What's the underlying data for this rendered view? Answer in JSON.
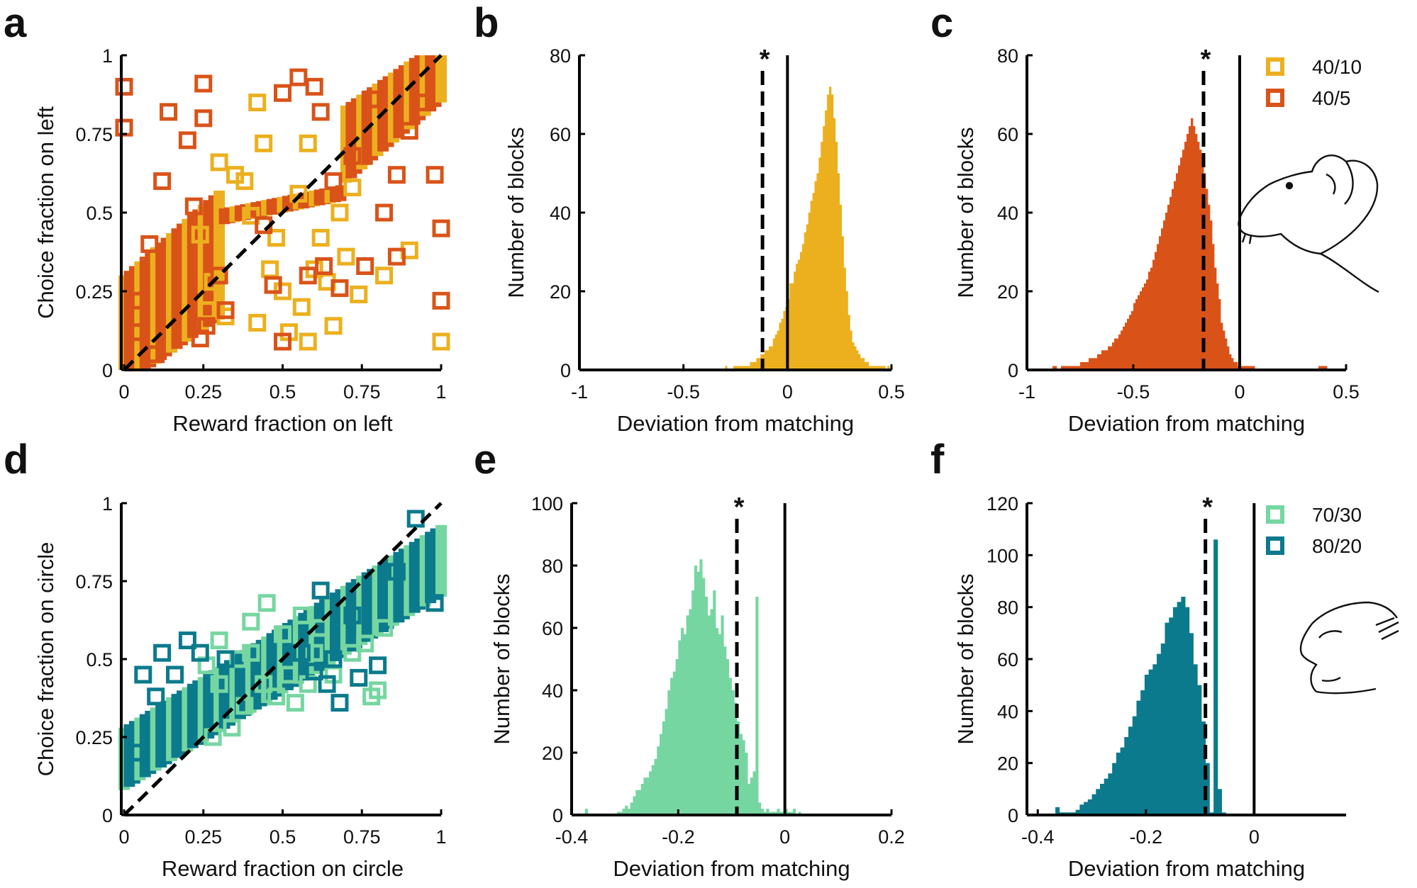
{
  "colors": {
    "yellow": "#ecb01f",
    "orange": "#d95319",
    "mint": "#76d6a1",
    "teal": "#0b7a8c",
    "axis": "#000000"
  },
  "chart_data": [
    {
      "panel": "a",
      "type": "scatter",
      "xlabel": "Reward fraction on left",
      "ylabel": "Choice fraction on left",
      "xlim": [
        0,
        1
      ],
      "ylim": [
        0,
        1
      ],
      "xticks": [
        "0",
        "0.25",
        "0.5",
        "0.75",
        "1"
      ],
      "yticks": [
        "0",
        "0.25",
        "0.5",
        "0.75",
        "1"
      ],
      "diagonal": true,
      "series": [
        {
          "name": "40/10",
          "color": "#ecb01f",
          "points": [
            [
              0.32,
              0.17
            ],
            [
              0.42,
              0.15
            ],
            [
              0.5,
              0.25
            ],
            [
              0.56,
              0.2
            ],
            [
              0.46,
              0.32
            ],
            [
              0.6,
              0.32
            ],
            [
              0.38,
              0.6
            ],
            [
              0.44,
              0.72
            ],
            [
              0.55,
              0.56
            ],
            [
              0.62,
              0.42
            ],
            [
              0.64,
              0.28
            ],
            [
              0.7,
              0.36
            ],
            [
              0.74,
              0.24
            ],
            [
              0.68,
              0.5
            ],
            [
              0.42,
              0.85
            ],
            [
              0.35,
              0.62
            ],
            [
              0.3,
              0.66
            ],
            [
              0.48,
              0.42
            ],
            [
              0.52,
              0.12
            ],
            [
              0.58,
              0.09
            ],
            [
              0.28,
              0.28
            ],
            [
              0.24,
              0.43
            ],
            [
              0.58,
              0.72
            ],
            [
              0.72,
              0.58
            ],
            [
              0.82,
              0.3
            ],
            [
              0.9,
              0.38
            ],
            [
              1.0,
              0.09
            ],
            [
              0.4,
              0.49
            ],
            [
              0.26,
              0.19
            ],
            [
              0.66,
              0.14
            ]
          ]
        },
        {
          "name": "40/5",
          "color": "#d95319",
          "points": [
            [
              0.0,
              0.9
            ],
            [
              0.0,
              0.77
            ],
            [
              0.14,
              0.82
            ],
            [
              0.25,
              0.91
            ],
            [
              0.2,
              0.73
            ],
            [
              0.25,
              0.8
            ],
            [
              0.22,
              0.52
            ],
            [
              0.12,
              0.6
            ],
            [
              0.08,
              0.4
            ],
            [
              0.05,
              0.22
            ],
            [
              0.04,
              0.12
            ],
            [
              0.26,
              0.14
            ],
            [
              0.32,
              0.19
            ],
            [
              0.47,
              0.27
            ],
            [
              0.5,
              0.09
            ],
            [
              0.58,
              0.3
            ],
            [
              0.63,
              0.33
            ],
            [
              0.68,
              0.26
            ],
            [
              0.76,
              0.33
            ],
            [
              0.82,
              0.5
            ],
            [
              0.86,
              0.36
            ],
            [
              0.9,
              0.76
            ],
            [
              0.95,
              0.85
            ],
            [
              0.98,
              0.62
            ],
            [
              1.0,
              0.22
            ],
            [
              1.0,
              0.45
            ],
            [
              0.72,
              0.68
            ],
            [
              0.62,
              0.82
            ],
            [
              0.5,
              0.88
            ],
            [
              0.66,
              0.6
            ],
            [
              0.78,
              0.86
            ],
            [
              0.44,
              0.46
            ],
            [
              0.1,
              0.05
            ],
            [
              0.3,
              0.3
            ],
            [
              0.24,
              0.1
            ],
            [
              0.86,
              0.62
            ],
            [
              0.6,
              0.9
            ],
            [
              0.55,
              0.93
            ]
          ]
        }
      ]
    },
    {
      "panel": "b",
      "type": "bar",
      "xlabel": "Deviation from matching",
      "ylabel": "Number of blocks",
      "xlim": [
        -1,
        0.5
      ],
      "ylim": [
        0,
        80
      ],
      "xticks": [
        "-1",
        "-0.5",
        "0",
        "0.5"
      ],
      "yticks": [
        "0",
        "20",
        "40",
        "60",
        "80"
      ],
      "color": "#ecb01f",
      "bin_start": -1.0,
      "bin_width": 0.01,
      "values": [
        0,
        0,
        0,
        0,
        0,
        0,
        0,
        0,
        0,
        0,
        0,
        0,
        0,
        0,
        0,
        0,
        0,
        0,
        0,
        0,
        0,
        0,
        0,
        0,
        0,
        0,
        0,
        0,
        0,
        0,
        0,
        0,
        0,
        0,
        0,
        0,
        0,
        0,
        0,
        0,
        0,
        0,
        0,
        0,
        0,
        0,
        0,
        0,
        0,
        0,
        0,
        0,
        0,
        0,
        0,
        0,
        0,
        0,
        0,
        0,
        0,
        0,
        0,
        0,
        0,
        0,
        0,
        0,
        0,
        0,
        1,
        0,
        0,
        0,
        1,
        1,
        1,
        1,
        1,
        1,
        1,
        1,
        2,
        2,
        2,
        3,
        3,
        4,
        4,
        5,
        5,
        6,
        6,
        8,
        9,
        10,
        12,
        13,
        15,
        16,
        18,
        22,
        22,
        25,
        27,
        28,
        30,
        32,
        35,
        37,
        40,
        43,
        45,
        48,
        50,
        54,
        58,
        62,
        66,
        70,
        72,
        70,
        64,
        58,
        50,
        42,
        34,
        26,
        20,
        14,
        10,
        7,
        6,
        5,
        4,
        3,
        3,
        2,
        2,
        1,
        1,
        1,
        1,
        1,
        1,
        1,
        1,
        0,
        1,
        0,
        0,
        0,
        0,
        0,
        0,
        0
      ],
      "mean_line": -0.12,
      "zero_line": 0,
      "significance": "*"
    },
    {
      "panel": "c",
      "type": "bar",
      "xlabel": "Deviation from matching",
      "ylabel": "Number of blocks",
      "xlim": [
        -1,
        0.5
      ],
      "ylim": [
        0,
        80
      ],
      "xticks": [
        "-1",
        "-0.5",
        "0",
        "0.5"
      ],
      "yticks": [
        "0",
        "20",
        "40",
        "60",
        "80"
      ],
      "color": "#d95319",
      "bin_start": -1.0,
      "bin_width": 0.01,
      "values": [
        0,
        0,
        0,
        0,
        0,
        0,
        0,
        0,
        0,
        0,
        0,
        0,
        1,
        1,
        0,
        0,
        1,
        1,
        1,
        1,
        1,
        1,
        1,
        1,
        1,
        2,
        2,
        2,
        2,
        3,
        3,
        3,
        3,
        4,
        4,
        5,
        5,
        5,
        6,
        6,
        7,
        8,
        8,
        9,
        10,
        11,
        12,
        13,
        14,
        15,
        17,
        18,
        19,
        20,
        21,
        22,
        23,
        25,
        26,
        28,
        30,
        32,
        34,
        36,
        38,
        40,
        42,
        44,
        46,
        48,
        50,
        52,
        54,
        56,
        58,
        60,
        62,
        64,
        62,
        60,
        58,
        56,
        54,
        50,
        46,
        42,
        38,
        32,
        26,
        22,
        18,
        12,
        10,
        8,
        6,
        4,
        3,
        2,
        2,
        1,
        1,
        1,
        1,
        1,
        1,
        1,
        1,
        0,
        0,
        0,
        0,
        0,
        0,
        0,
        0,
        0,
        0,
        0,
        0,
        0,
        0,
        0,
        0,
        0,
        0,
        0,
        0,
        0,
        0,
        0,
        0,
        0,
        0,
        0,
        0,
        0,
        0,
        1,
        1,
        1,
        1,
        0,
        0,
        0,
        0,
        0,
        0,
        0,
        0,
        0
      ],
      "mean_line": -0.17,
      "zero_line": 0,
      "significance": "*",
      "legend": [
        {
          "label": "40/10",
          "color": "#ecb01f"
        },
        {
          "label": "40/5",
          "color": "#d95319"
        }
      ]
    },
    {
      "panel": "d",
      "type": "scatter",
      "xlabel": "Reward fraction on circle",
      "ylabel": "Choice fraction on circle",
      "xlim": [
        0,
        1
      ],
      "ylim": [
        0,
        1
      ],
      "xticks": [
        "0",
        "0.25",
        "0.5",
        "0.75",
        "1"
      ],
      "yticks": [
        "0",
        "0.25",
        "0.5",
        "0.75",
        "1"
      ],
      "diagonal": true,
      "series": [
        {
          "name": "70/30",
          "color": "#76d6a1",
          "points": [
            [
              0.45,
              0.68
            ],
            [
              0.4,
              0.62
            ],
            [
              0.5,
              0.58
            ],
            [
              0.6,
              0.52
            ],
            [
              0.52,
              0.45
            ],
            [
              0.44,
              0.42
            ],
            [
              0.38,
              0.35
            ],
            [
              0.34,
              0.28
            ],
            [
              0.28,
              0.25
            ],
            [
              0.36,
              0.5
            ],
            [
              0.3,
              0.56
            ],
            [
              0.26,
              0.48
            ],
            [
              0.56,
              0.64
            ],
            [
              0.62,
              0.6
            ],
            [
              0.66,
              0.45
            ],
            [
              0.72,
              0.52
            ],
            [
              0.78,
              0.38
            ],
            [
              0.8,
              0.4
            ],
            [
              0.76,
              0.55
            ],
            [
              0.48,
              0.38
            ],
            [
              0.54,
              0.36
            ],
            [
              0.82,
              0.6
            ],
            [
              0.3,
              0.42
            ],
            [
              0.4,
              0.52
            ],
            [
              0.58,
              0.42
            ]
          ]
        },
        {
          "name": "80/20",
          "color": "#0b7a8c",
          "points": [
            [
              0.06,
              0.45
            ],
            [
              0.12,
              0.52
            ],
            [
              0.2,
              0.56
            ],
            [
              0.24,
              0.52
            ],
            [
              0.62,
              0.72
            ],
            [
              0.72,
              0.64
            ],
            [
              0.8,
              0.48
            ],
            [
              0.74,
              0.44
            ],
            [
              0.68,
              0.36
            ],
            [
              0.64,
              0.42
            ],
            [
              0.56,
              0.52
            ],
            [
              0.32,
              0.5
            ],
            [
              0.1,
              0.38
            ],
            [
              0.04,
              0.2
            ],
            [
              0.98,
              0.68
            ],
            [
              0.86,
              0.78
            ],
            [
              0.92,
              0.95
            ],
            [
              0.66,
              0.5
            ],
            [
              0.6,
              0.46
            ],
            [
              0.16,
              0.45
            ]
          ]
        }
      ]
    },
    {
      "panel": "e",
      "type": "bar",
      "xlabel": "Deviation from matching",
      "ylabel": "Number of blocks",
      "xlim": [
        -0.4,
        0.2
      ],
      "ylim": [
        0,
        100
      ],
      "xticks": [
        "-0.4",
        "-0.2",
        "0",
        "0.2"
      ],
      "yticks": [
        "0",
        "20",
        "40",
        "60",
        "80",
        "100"
      ],
      "color": "#76d6a1",
      "bin_start": -0.4,
      "bin_width": 0.005,
      "values": [
        0,
        0,
        0,
        0,
        0,
        2,
        0,
        0,
        0,
        0,
        0,
        0,
        0,
        0,
        0,
        0,
        0,
        1,
        1,
        2,
        3,
        2,
        4,
        6,
        8,
        8,
        10,
        12,
        12,
        14,
        16,
        18,
        22,
        26,
        30,
        34,
        40,
        44,
        46,
        50,
        56,
        60,
        58,
        64,
        66,
        72,
        80,
        78,
        82,
        76,
        70,
        64,
        66,
        72,
        60,
        58,
        64,
        54,
        50,
        44,
        40,
        36,
        30,
        26,
        24,
        20,
        10,
        12,
        14,
        70,
        4,
        2,
        1,
        2,
        1,
        1,
        1,
        2,
        1,
        1,
        2,
        1,
        1,
        2,
        0,
        1,
        0,
        0,
        0,
        0
      ],
      "mean_line": -0.09,
      "zero_line": 0,
      "significance": "*"
    },
    {
      "panel": "f",
      "type": "bar",
      "xlabel": "Deviation from matching",
      "ylabel": "Number of blocks",
      "xlim": [
        -0.42,
        0.17
      ],
      "ylim": [
        0,
        120
      ],
      "xticks": [
        "-0.4",
        "-0.2",
        "0"
      ],
      "yticks": [
        "0",
        "20",
        "40",
        "60",
        "80",
        "100",
        "120"
      ],
      "color": "#0b7a8c",
      "bin_start": -0.42,
      "bin_width": 0.0075,
      "values": [
        0,
        0,
        0,
        0,
        0,
        0,
        0,
        3,
        1,
        1,
        1,
        1,
        2,
        4,
        5,
        6,
        8,
        10,
        12,
        14,
        16,
        20,
        24,
        26,
        30,
        34,
        38,
        44,
        48,
        54,
        56,
        58,
        62,
        66,
        74,
        76,
        80,
        82,
        84,
        80,
        70,
        58,
        50,
        36,
        20,
        1,
        106,
        10,
        1,
        0,
        0,
        0,
        0,
        0,
        0,
        0,
        0,
        0
      ],
      "mean_line": -0.09,
      "zero_line": 0,
      "significance": "*",
      "legend": [
        {
          "label": "70/30",
          "color": "#76d6a1"
        },
        {
          "label": "80/20",
          "color": "#0b7a8c"
        }
      ]
    }
  ]
}
